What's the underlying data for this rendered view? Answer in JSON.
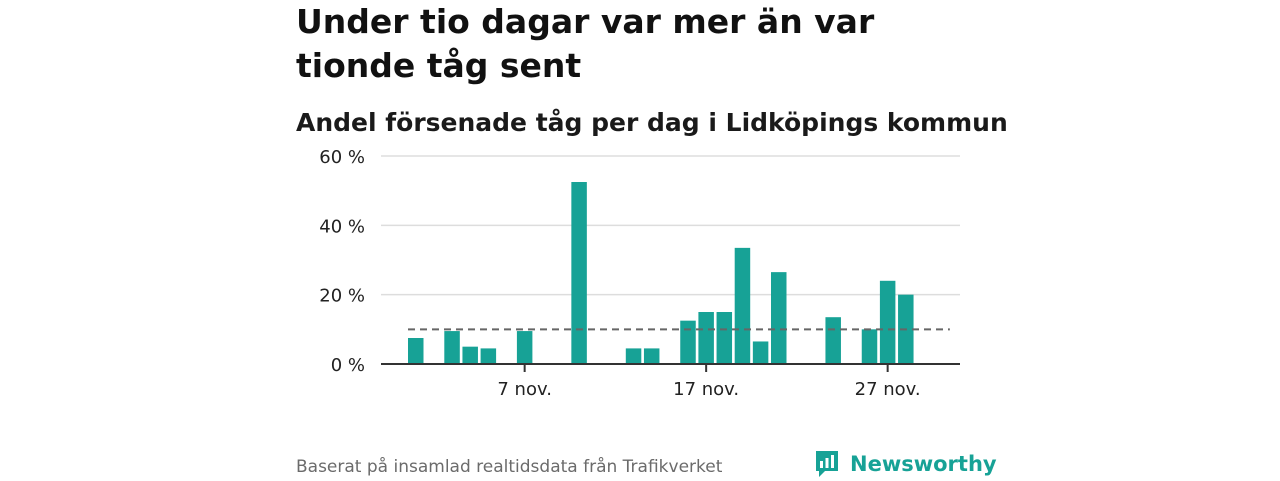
{
  "title": "Under tio dagar var mer än var tionde tåg sent",
  "subtitle": "Andel försenade tåg per dag i Lidköpings kommun",
  "footer": {
    "source": "Baserat på insamlad realtidsdata från Trafikverket",
    "brand": "Newsworthy"
  },
  "colors": {
    "bar": "#17a296",
    "reference_line": "#666666",
    "grid": "#dddddd",
    "axis": "#333333",
    "brand": "#17a296"
  },
  "chart_data": {
    "type": "bar",
    "x_start_day": 1,
    "x_end_day": 30,
    "days": [
      1,
      2,
      3,
      4,
      5,
      6,
      7,
      8,
      9,
      10,
      11,
      12,
      13,
      14,
      15,
      16,
      17,
      18,
      19,
      20,
      21,
      22,
      23,
      24,
      25,
      26,
      27,
      28,
      29,
      30
    ],
    "values": [
      7.5,
      null,
      9.5,
      5,
      4.5,
      null,
      9.5,
      null,
      null,
      52.5,
      null,
      null,
      4.5,
      4.5,
      null,
      12.5,
      15,
      15,
      33.5,
      6.5,
      26.5,
      null,
      null,
      13.5,
      null,
      10,
      24,
      20,
      null,
      null
    ],
    "reference_line": 10,
    "ylim": [
      0,
      60
    ],
    "yticks": [
      0,
      20,
      40,
      60
    ],
    "ytick_labels": [
      "0 %",
      "20 %",
      "40 %",
      "60 %"
    ],
    "xticks": [
      7,
      17,
      27
    ],
    "xtick_labels": [
      "7 nov.",
      "17 nov.",
      "27 nov."
    ],
    "grid": true,
    "xlabel": "",
    "ylabel": ""
  }
}
